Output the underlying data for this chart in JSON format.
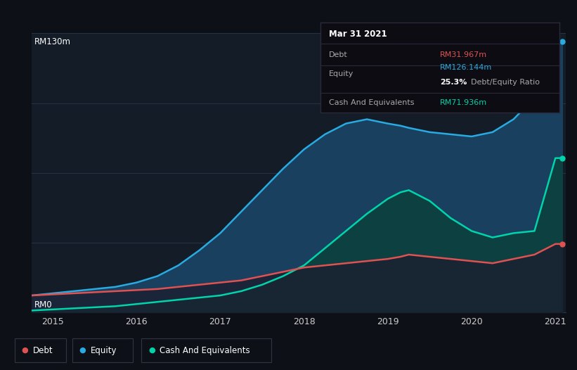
{
  "bg_color": "#0d1117",
  "plot_bg_color": "#131c27",
  "grid_color": "#253545",
  "title_date": "Mar 31 2021",
  "tooltip": {
    "debt_label": "Debt",
    "debt_value": "RM31.967m",
    "equity_label": "Equity",
    "equity_value": "RM126.144m",
    "ratio": "25.3%",
    "ratio_label": "Debt/Equity Ratio",
    "cash_label": "Cash And Equivalents",
    "cash_value": "RM71.936m"
  },
  "y_label_top": "RM130m",
  "y_label_bottom": "RM0",
  "x_ticks": [
    "2015",
    "2016",
    "2017",
    "2018",
    "2019",
    "2020",
    "2021"
  ],
  "debt_color": "#e05252",
  "equity_color": "#29abe2",
  "cash_color": "#00d4aa",
  "equity_fill_color": "#1a4060",
  "cash_fill_color": "#0d4040",
  "years": [
    2014.75,
    2015.0,
    2015.25,
    2015.5,
    2015.75,
    2016.0,
    2016.25,
    2016.5,
    2016.75,
    2017.0,
    2017.25,
    2017.5,
    2017.75,
    2018.0,
    2018.25,
    2018.5,
    2018.75,
    2019.0,
    2019.15,
    2019.25,
    2019.5,
    2019.75,
    2020.0,
    2020.25,
    2020.5,
    2020.75,
    2021.0,
    2021.08
  ],
  "equity": [
    8,
    9,
    10,
    11,
    12,
    14,
    17,
    22,
    29,
    37,
    47,
    57,
    67,
    76,
    83,
    88,
    90,
    88,
    87,
    86,
    84,
    83,
    82,
    84,
    90,
    100,
    126,
    126.144
  ],
  "debt": [
    8,
    8.5,
    9,
    9.5,
    10,
    10.5,
    11,
    12,
    13,
    14,
    15,
    17,
    19,
    21,
    22,
    23,
    24,
    25,
    26,
    27,
    26,
    25,
    24,
    23,
    25,
    27,
    31.967,
    31.967
  ],
  "cash": [
    1,
    1.5,
    2,
    2.5,
    3,
    4,
    5,
    6,
    7,
    8,
    10,
    13,
    17,
    22,
    30,
    38,
    46,
    53,
    56,
    57,
    52,
    44,
    38,
    35,
    37,
    38,
    71.936,
    71.936
  ],
  "ylim": [
    0,
    130
  ],
  "xlim": [
    2014.75,
    2021.12
  ]
}
